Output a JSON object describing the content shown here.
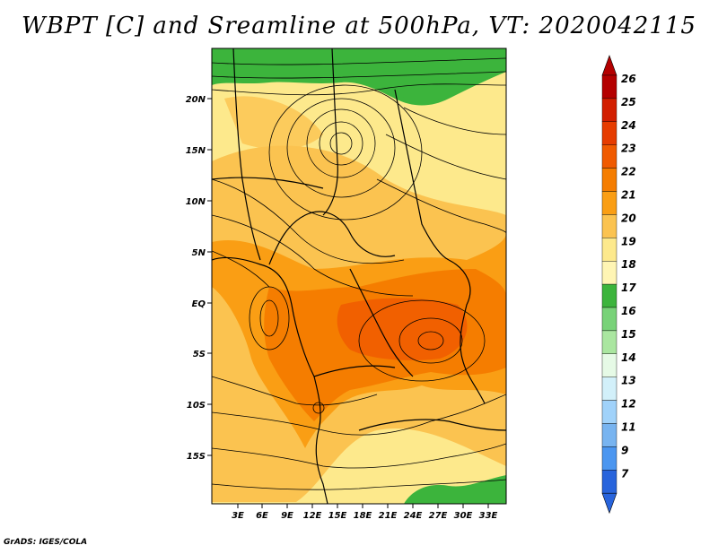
{
  "title": "WBPT [C] and Sreamline at 500hPa, VT: 2020042115",
  "credit": "GrADS: IGES/COLA",
  "map": {
    "lon_labels": [
      "3E",
      "6E",
      "9E",
      "12E",
      "15E",
      "18E",
      "21E",
      "24E",
      "27E",
      "30E",
      "33E"
    ],
    "lat_labels": [
      "20N",
      "15N",
      "10N",
      "5N",
      "EQ",
      "5S",
      "10S",
      "15S"
    ]
  },
  "colorbar": {
    "labels": [
      "26",
      "25",
      "24",
      "23",
      "22",
      "21",
      "20",
      "19",
      "18",
      "17",
      "16",
      "15",
      "14",
      "13",
      "12",
      "11",
      "9",
      "7"
    ],
    "colors": [
      "#b40000",
      "#d21e00",
      "#e63c00",
      "#f05a00",
      "#f57d00",
      "#fa9e14",
      "#fbc350",
      "#fde98c",
      "#fff5b4",
      "#3cb43c",
      "#78d278",
      "#aae6a0",
      "#e6fae6",
      "#d2f0fa",
      "#a0d2fa",
      "#78b4f0",
      "#4b96f0",
      "#2864dc"
    ]
  }
}
